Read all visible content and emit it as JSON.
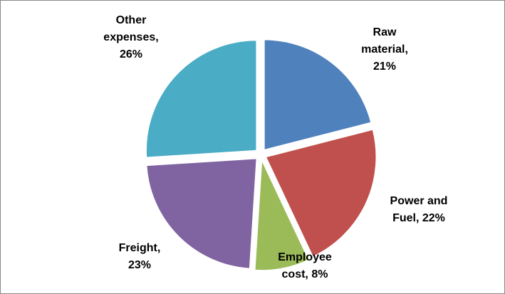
{
  "chart_data": {
    "type": "pie",
    "values": [
      21,
      22,
      8,
      23,
      26
    ],
    "value_labels": [
      "Raw material, 21%",
      "Power and Fuel, 22%",
      "Employee cost, 8%",
      "Freight, 23%",
      "Other expenses, 26%"
    ],
    "colors": [
      "#4f81bd",
      "#c0504d",
      "#9bbb59",
      "#8064a2",
      "#4bacc6"
    ]
  }
}
